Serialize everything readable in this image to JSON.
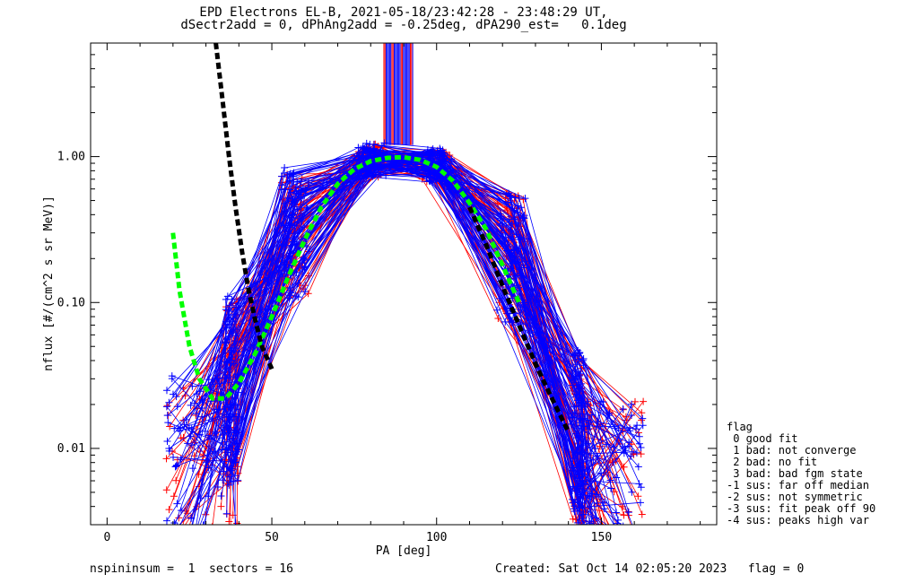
{
  "title_line1": "EPD Electrons EL-B, 2021-05-18/23:42:28 - 23:48:29 UT,",
  "title_line2": "dSectr2add = 0, dPhAng2add = -0.25deg, dPA290_est=   0.1deg",
  "footer": {
    "left": "nspininsum =  1  sectors = 16",
    "right": "Created: Sat Oct 14 02:05:20 2023   flag = 0"
  },
  "legend": {
    "title": "flag",
    "items": [
      " 0 good fit",
      " 1 bad: not converge",
      " 2 bad: no fit",
      " 3 bad: bad fgm state",
      "-1 sus: far off median",
      "-2 sus: not symmetric",
      "-3 sus: fit peak off 90",
      "-4 sus: peaks high var"
    ]
  },
  "colors": {
    "red": "#ff0000",
    "blue": "#0000ff",
    "green": "#00ff00",
    "black": "#000000"
  },
  "chart_data": {
    "type": "line",
    "xlabel": "PA [deg]",
    "ylabel": "nflux [#/(cm^2 s sr MeV)]",
    "xlim": [
      -5,
      185
    ],
    "ylim": [
      0.003,
      6.0
    ],
    "yscale": "log",
    "xticks": [
      0,
      50,
      100,
      150
    ],
    "yticks": [
      {
        "value": 0.01,
        "label": "0.01"
      },
      {
        "value": 0.1,
        "label": "0.10"
      },
      {
        "value": 1.0,
        "label": "1.00"
      }
    ],
    "grid": false,
    "pa_bins": [
      20,
      38,
      57,
      80,
      100,
      123,
      143,
      160
    ],
    "representative_profile": [
      0.008,
      0.025,
      0.3,
      0.95,
      0.88,
      0.2,
      0.012,
      0.006
    ],
    "green_fit": {
      "x": [
        20,
        22,
        25,
        28,
        32,
        36,
        40,
        45,
        50,
        55,
        60,
        65,
        70,
        75,
        80,
        85,
        90,
        95,
        100,
        105,
        110,
        115,
        120,
        125
      ],
      "y": [
        0.3,
        0.12,
        0.05,
        0.03,
        0.022,
        0.022,
        0.028,
        0.045,
        0.08,
        0.15,
        0.27,
        0.45,
        0.65,
        0.82,
        0.93,
        0.98,
        0.99,
        0.95,
        0.85,
        0.68,
        0.48,
        0.32,
        0.18,
        0.1
      ]
    },
    "black_fit": {
      "x": [
        33,
        35,
        37,
        39,
        41,
        43,
        45,
        47,
        50
      ],
      "y": [
        6.0,
        2.5,
        1.0,
        0.45,
        0.22,
        0.12,
        0.075,
        0.05,
        0.035
      ],
      "x2": [
        110,
        115,
        120,
        125,
        130,
        135,
        140
      ],
      "y2": [
        0.45,
        0.25,
        0.13,
        0.07,
        0.038,
        0.022,
        0.013
      ]
    },
    "vertical_band": {
      "x_min": 84,
      "x_max": 93,
      "y_min": 1.2,
      "y_max": 6.0
    },
    "series_count": {
      "red": 60,
      "blue": 90
    }
  }
}
